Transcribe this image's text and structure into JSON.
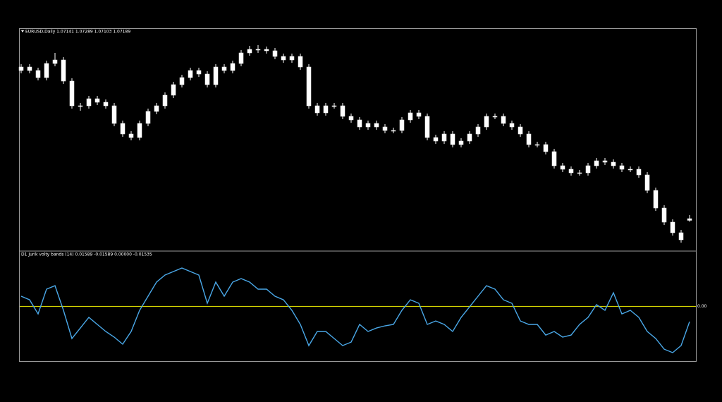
{
  "chart_data": [
    {
      "type": "candlestick",
      "title": "EURUSD,Daily  1.07141 1.07289 1.07103 1.07189",
      "color": "#ffffff",
      "ylim": [
        1.0631,
        1.1255
      ],
      "open": [
        1.1139,
        1.1149,
        1.1139,
        1.1119,
        1.1159,
        1.1169,
        1.1109,
        1.1039,
        1.1039,
        1.1059,
        1.1049,
        1.1039,
        1.0989,
        1.0959,
        1.0949,
        1.0989,
        1.1023,
        1.1039,
        1.1069,
        1.1099,
        1.1119,
        1.1139,
        1.1129,
        1.1099,
        1.1149,
        1.1139,
        1.1159,
        1.1189,
        1.1199,
        1.1199,
        1.1195,
        1.1179,
        1.1169,
        1.1179,
        1.1149,
        1.1039,
        1.1019,
        1.1039,
        1.1039,
        1.1009,
        1.0999,
        1.0979,
        1.0989,
        1.0979,
        1.0969,
        1.0969,
        1.0999,
        1.1019,
        1.1009,
        1.0949,
        1.0939,
        1.0959,
        1.0929,
        1.0939,
        1.0959,
        1.0979,
        1.1009,
        1.1009,
        1.0989,
        1.0979,
        1.0959,
        1.0929,
        1.0929,
        1.0909,
        1.0869,
        1.0859,
        1.0849,
        1.0849,
        1.0869,
        1.0883,
        1.0879,
        1.0869,
        1.0859,
        1.0859,
        1.0843,
        1.0799,
        1.0749,
        1.0709,
        1.0679,
        1.07141
      ],
      "high": [
        1.1157,
        1.1157,
        1.1147,
        1.1167,
        1.1189,
        1.1177,
        1.1117,
        1.1047,
        1.1067,
        1.1067,
        1.1057,
        1.1047,
        1.0997,
        1.0967,
        1.0997,
        1.1031,
        1.1047,
        1.1077,
        1.1107,
        1.1127,
        1.1147,
        1.1147,
        1.1137,
        1.1157,
        1.1157,
        1.1167,
        1.1197,
        1.1209,
        1.1211,
        1.1207,
        1.1203,
        1.1187,
        1.1187,
        1.1187,
        1.1157,
        1.1047,
        1.1047,
        1.1047,
        1.1047,
        1.1017,
        1.1007,
        1.0997,
        1.0997,
        1.0987,
        1.0977,
        1.1007,
        1.1027,
        1.1027,
        1.1017,
        1.0957,
        1.0967,
        1.0967,
        1.0947,
        1.0967,
        1.0987,
        1.1017,
        1.1017,
        1.1017,
        1.0997,
        1.0987,
        1.0967,
        1.0937,
        1.0937,
        1.0917,
        1.0877,
        1.0867,
        1.0857,
        1.0877,
        1.0891,
        1.0891,
        1.0887,
        1.0877,
        1.0867,
        1.0867,
        1.0851,
        1.0807,
        1.0757,
        1.0717,
        1.0687,
        1.07289
      ],
      "low": [
        1.1131,
        1.1131,
        1.1111,
        1.1111,
        1.1151,
        1.1101,
        1.1031,
        1.1025,
        1.1031,
        1.1041,
        1.1031,
        1.0981,
        1.0951,
        1.0941,
        1.0941,
        1.0981,
        1.1015,
        1.1031,
        1.1061,
        1.1091,
        1.1111,
        1.1121,
        1.1091,
        1.1091,
        1.1131,
        1.1131,
        1.1151,
        1.1181,
        1.1189,
        1.1187,
        1.1171,
        1.1161,
        1.1161,
        1.1141,
        1.1031,
        1.1011,
        1.1011,
        1.1031,
        1.1001,
        1.0991,
        1.0971,
        1.0971,
        1.0971,
        1.0961,
        1.0961,
        1.0961,
        1.0991,
        1.1001,
        1.0941,
        1.0931,
        1.0931,
        1.0921,
        1.0921,
        1.0931,
        1.0951,
        1.0971,
        1.1001,
        1.0981,
        1.0971,
        1.0951,
        1.0921,
        1.0921,
        1.0901,
        1.0861,
        1.0851,
        1.0841,
        1.0841,
        1.0841,
        1.0861,
        1.0871,
        1.0861,
        1.0851,
        1.0851,
        1.0835,
        1.0791,
        1.0741,
        1.0701,
        1.0671,
        1.0651,
        1.07103
      ],
      "close": [
        1.1149,
        1.1139,
        1.1119,
        1.1159,
        1.1169,
        1.1109,
        1.1039,
        1.1039,
        1.1059,
        1.1049,
        1.1039,
        1.0989,
        1.0959,
        1.0949,
        1.0989,
        1.1023,
        1.1039,
        1.1069,
        1.1099,
        1.1119,
        1.1139,
        1.1129,
        1.1099,
        1.1149,
        1.1139,
        1.1159,
        1.1189,
        1.1199,
        1.1199,
        1.1195,
        1.1179,
        1.1169,
        1.1179,
        1.1149,
        1.1039,
        1.1019,
        1.1039,
        1.1039,
        1.1009,
        1.0999,
        1.0979,
        1.0989,
        1.0979,
        1.0969,
        1.0969,
        1.0999,
        1.1019,
        1.1009,
        1.0949,
        1.0939,
        1.0959,
        1.0929,
        1.0939,
        1.0959,
        1.0979,
        1.1009,
        1.1009,
        1.0989,
        1.0979,
        1.0959,
        1.0929,
        1.0929,
        1.0909,
        1.0869,
        1.0859,
        1.0849,
        1.0849,
        1.0869,
        1.0883,
        1.0879,
        1.0869,
        1.0859,
        1.0859,
        1.0843,
        1.0799,
        1.0749,
        1.0709,
        1.0679,
        1.0659,
        1.07189
      ]
    },
    {
      "type": "line",
      "title": "D1 Jurik volty bands (14) 0.01589 -0.01589 0.00000 -0.01535",
      "color": "#4aa8e8",
      "ylim": [
        -0.055,
        0.055
      ],
      "yticks": [
        {
          "value": 0,
          "label": "0.00"
        }
      ],
      "grid": true,
      "grid_color": "#d4d400",
      "values": [
        0.0103,
        0.0067,
        -0.0075,
        0.0174,
        0.0209,
        -0.0039,
        -0.0323,
        -0.0217,
        -0.011,
        -0.0181,
        -0.0252,
        -0.0309,
        -0.038,
        -0.0252,
        -0.0039,
        0.0103,
        0.0245,
        0.0316,
        0.0351,
        0.0387,
        0.0351,
        0.0316,
        0.0032,
        0.0245,
        0.0103,
        0.0245,
        0.028,
        0.0245,
        0.0174,
        0.0174,
        0.0103,
        0.0067,
        -0.0039,
        -0.0181,
        -0.0394,
        -0.0252,
        -0.0252,
        -0.0323,
        -0.0394,
        -0.0359,
        -0.0181,
        -0.0252,
        -0.0217,
        -0.0195,
        -0.0181,
        -0.0039,
        0.0067,
        0.0032,
        -0.0181,
        -0.0146,
        -0.0181,
        -0.0252,
        -0.011,
        -0.0004,
        0.0103,
        0.0209,
        0.0174,
        0.0067,
        0.0032,
        -0.0146,
        -0.0181,
        -0.0181,
        -0.0288,
        -0.0252,
        -0.0309,
        -0.0288,
        -0.0181,
        -0.011,
        0.0018,
        -0.0039,
        0.0138,
        -0.0075,
        -0.0039,
        -0.011,
        -0.0252,
        -0.0323,
        -0.043,
        -0.0465,
        -0.0394,
        -0.01535
      ]
    }
  ]
}
